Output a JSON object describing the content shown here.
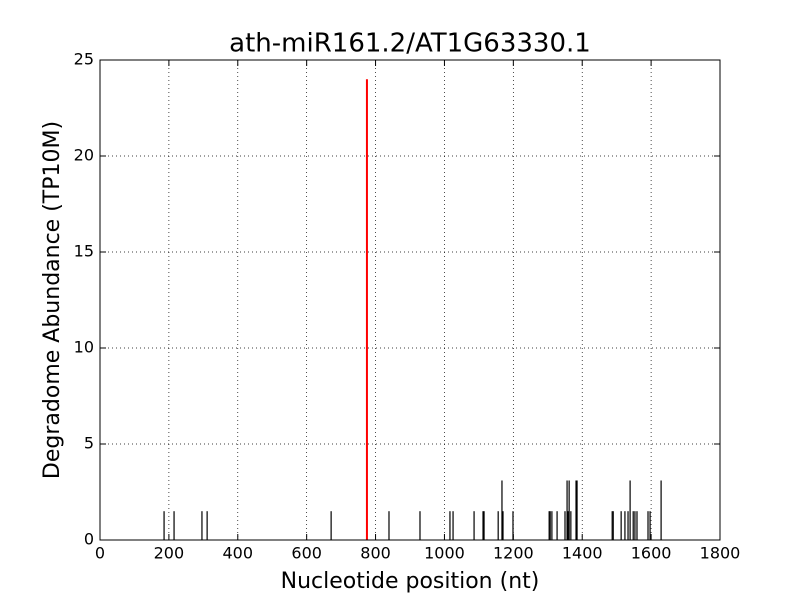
{
  "chart_data": {
    "type": "stem",
    "title": "ath-miR161.2/AT1G63330.1",
    "xlabel": "Nucleotide position (nt)",
    "ylabel": "Degradome Abundance (TP10M)",
    "xlim": [
      0,
      1800
    ],
    "xticks": [
      0,
      200,
      400,
      600,
      800,
      1000,
      1200,
      1400,
      1600,
      1800
    ],
    "ylim": [
      0,
      25
    ],
    "yticks": [
      0,
      5,
      10,
      15,
      20,
      25
    ],
    "grid": true,
    "series": [
      {
        "color": "#000000",
        "x": [
          186,
          215,
          296,
          311,
          671,
          839,
          929,
          1016,
          1025,
          1086,
          1112,
          1115,
          1156,
          1167,
          1170,
          1199,
          1304,
          1307,
          1312,
          1327,
          1350,
          1356,
          1359,
          1362,
          1367,
          1382,
          1385,
          1487,
          1490,
          1513,
          1524,
          1533,
          1539,
          1548,
          1553,
          1559,
          1591,
          1597,
          1629
        ],
        "values": [
          1.5,
          1.5,
          1.5,
          1.5,
          1.5,
          1.5,
          1.5,
          1.5,
          1.5,
          1.5,
          1.5,
          1.5,
          1.5,
          3.1,
          1.5,
          1.5,
          1.5,
          1.5,
          1.5,
          1.5,
          1.5,
          3.1,
          1.5,
          3.1,
          1.5,
          3.1,
          3.1,
          1.5,
          1.5,
          1.5,
          1.5,
          1.5,
          3.1,
          1.5,
          1.5,
          1.5,
          1.5,
          1.5,
          3.1
        ]
      },
      {
        "color": "#ff0000",
        "x": [
          775
        ],
        "values": [
          24
        ]
      }
    ]
  }
}
